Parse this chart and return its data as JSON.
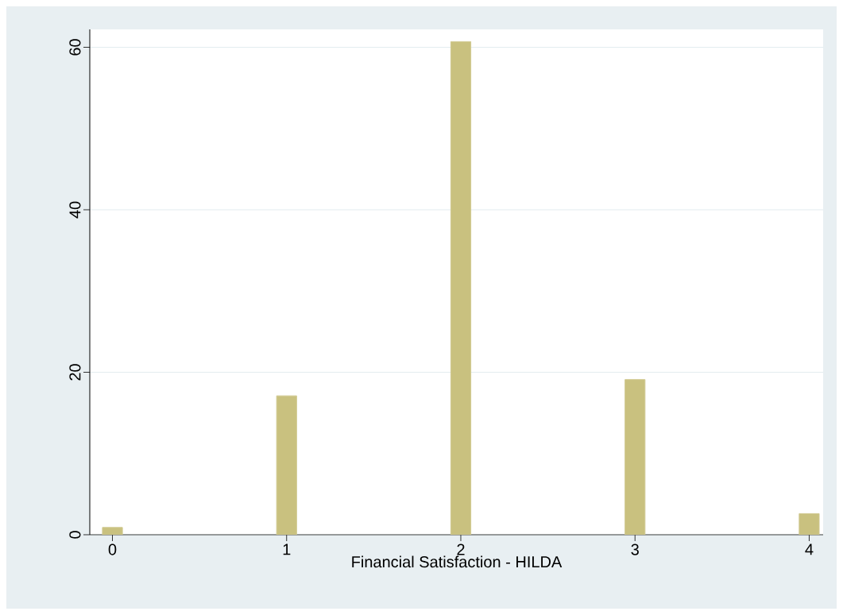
{
  "chart_data": {
    "type": "bar",
    "xlabel": "Financial Satisfaction - HILDA",
    "x": [
      0,
      1,
      2,
      3,
      4
    ],
    "values": [
      0.9,
      17.1,
      60.7,
      19.1,
      2.6
    ],
    "color": "#c9c17f",
    "xlim": [
      -0.13,
      4.08
    ],
    "ylim": [
      0,
      62.2
    ],
    "xticks": [
      0,
      1,
      2,
      3,
      4
    ],
    "yticks": [
      0,
      20,
      40,
      60
    ],
    "grid": "y"
  }
}
